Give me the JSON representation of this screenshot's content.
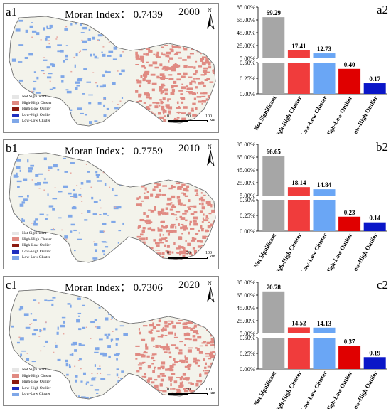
{
  "legend": {
    "items": [
      {
        "label": "Not Significant",
        "color": "#e6e6e6"
      },
      {
        "label": "High-High Cluster",
        "color": "#e08a82"
      },
      {
        "label": "High-Low Outlier",
        "color": "#8b1a10"
      },
      {
        "label": "Low-High Outlier",
        "color": "#1f2fbf"
      },
      {
        "label": "Low-Low Cluster",
        "color": "#7fa7e8"
      }
    ]
  },
  "scale": {
    "t0": "0",
    "t1": "50",
    "t2": "100",
    "unit": "km"
  },
  "north_label": "N",
  "panels": [
    {
      "map_label": "a1",
      "chart_label": "a2",
      "moran": "Moran Index： 0.7439",
      "year": "2000"
    },
    {
      "map_label": "b1",
      "chart_label": "b2",
      "moran": "Moran Index： 0.7759",
      "year": "2010"
    },
    {
      "map_label": "c1",
      "chart_label": "c2",
      "moran": "Moran Index： 0.7306",
      "year": "2020"
    }
  ],
  "chart_data": [
    {
      "type": "bar",
      "broken_axis": true,
      "categories": [
        "Not Significant",
        "High-High Cluster",
        "Low-Low Cluster",
        "High-Low Outlier",
        "Low-High Outlier"
      ],
      "values": [
        69.29,
        17.41,
        12.73,
        0.4,
        0.17
      ],
      "labels": [
        "69.29",
        "17.41",
        "12.73",
        "0.40",
        "0.17"
      ],
      "colors": [
        "#a6a6a6",
        "#f03c3c",
        "#6aa6f5",
        "#e00000",
        "#0a16c8"
      ],
      "upper_ticks": [
        "85.00%",
        "65.00%",
        "45.00%",
        "25.00%",
        "5.00%"
      ],
      "lower_ticks": [
        "0.50%",
        "0.25%",
        "0.00%"
      ]
    },
    {
      "type": "bar",
      "broken_axis": true,
      "categories": [
        "Not Significant",
        "High-High Cluster",
        "Low-Low Cluster",
        "High-Low Outlier",
        "Low-High Outlier"
      ],
      "values": [
        66.65,
        18.14,
        14.84,
        0.23,
        0.14
      ],
      "labels": [
        "66.65",
        "18.14",
        "14.84",
        "0.23",
        "0.14"
      ],
      "colors": [
        "#a6a6a6",
        "#f03c3c",
        "#6aa6f5",
        "#e00000",
        "#0a16c8"
      ],
      "upper_ticks": [
        "85.00%",
        "65.00%",
        "45.00%",
        "25.00%",
        "5.00%"
      ],
      "lower_ticks": [
        "0.50%",
        "0.25%",
        "0.00%"
      ]
    },
    {
      "type": "bar",
      "broken_axis": true,
      "categories": [
        "Not Significant",
        "High-High Cluster",
        "Low-Low Cluster",
        "High-Low Outlier",
        "Low-High Outlier"
      ],
      "values": [
        70.78,
        14.52,
        14.13,
        0.37,
        0.19
      ],
      "labels": [
        "70.78",
        "14.52",
        "14.13",
        "0.37",
        "0.19"
      ],
      "colors": [
        "#a6a6a6",
        "#f03c3c",
        "#6aa6f5",
        "#e00000",
        "#0a16c8"
      ],
      "upper_ticks": [
        "85.00%",
        "65.00%",
        "45.00%",
        "25.00%",
        "5.00%"
      ],
      "lower_ticks": [
        "0.50%",
        "0.25%",
        "0.00%"
      ]
    }
  ]
}
